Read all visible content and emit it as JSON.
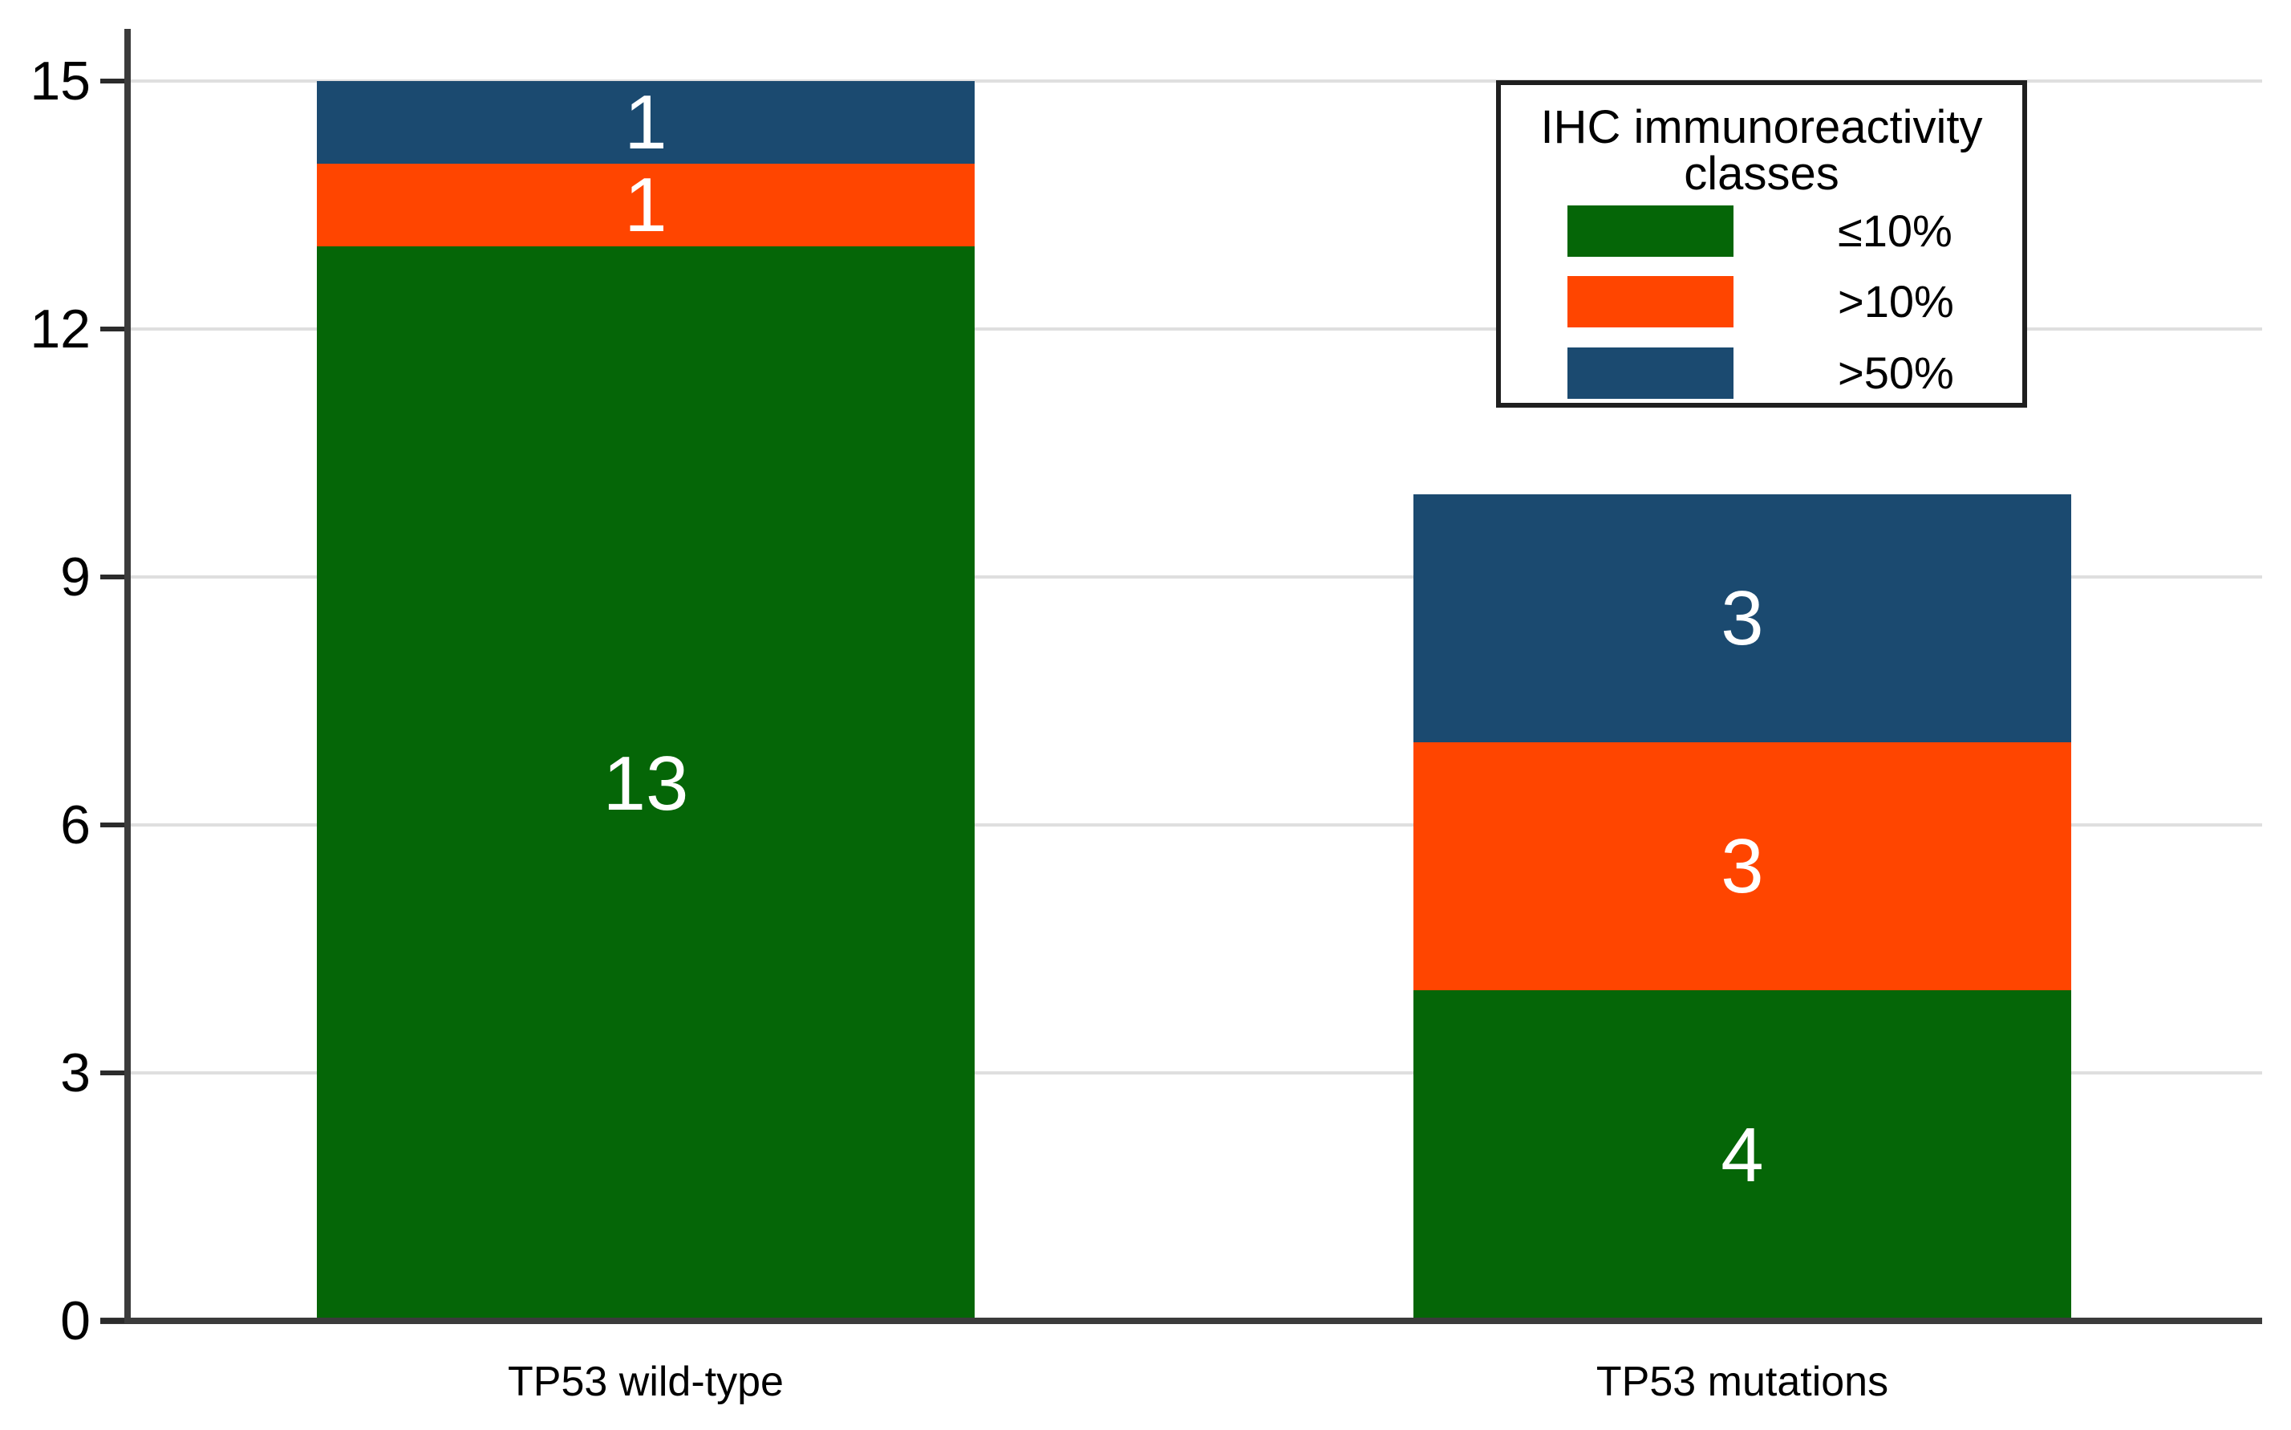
{
  "chart_data": {
    "type": "bar",
    "stacked": true,
    "categories": [
      "TP53 wild-type",
      "TP53 mutations"
    ],
    "series": [
      {
        "name": "≤10%",
        "color": "#056607",
        "values": [
          13,
          4
        ]
      },
      {
        "name": ">10%",
        "color": "#FF4500",
        "values": [
          1,
          3
        ]
      },
      {
        "name": ">50%",
        "color": "#1B4A70",
        "values": [
          1,
          3
        ]
      }
    ],
    "yticks": [
      0,
      3,
      6,
      9,
      12,
      15
    ],
    "ylim": [
      0,
      15.6
    ],
    "grid": true,
    "legend": {
      "title_lines": [
        "IHC immunoreactivity",
        "classes"
      ],
      "position": "top-right"
    },
    "style": {
      "grid_color": "#DFDFDF",
      "axis_color": "#3B3B3B",
      "tick_color": "#2B2B2B",
      "bar_label_color": "#FFFFFF",
      "text_color": "#000000",
      "background": "#FFFFFF"
    }
  }
}
